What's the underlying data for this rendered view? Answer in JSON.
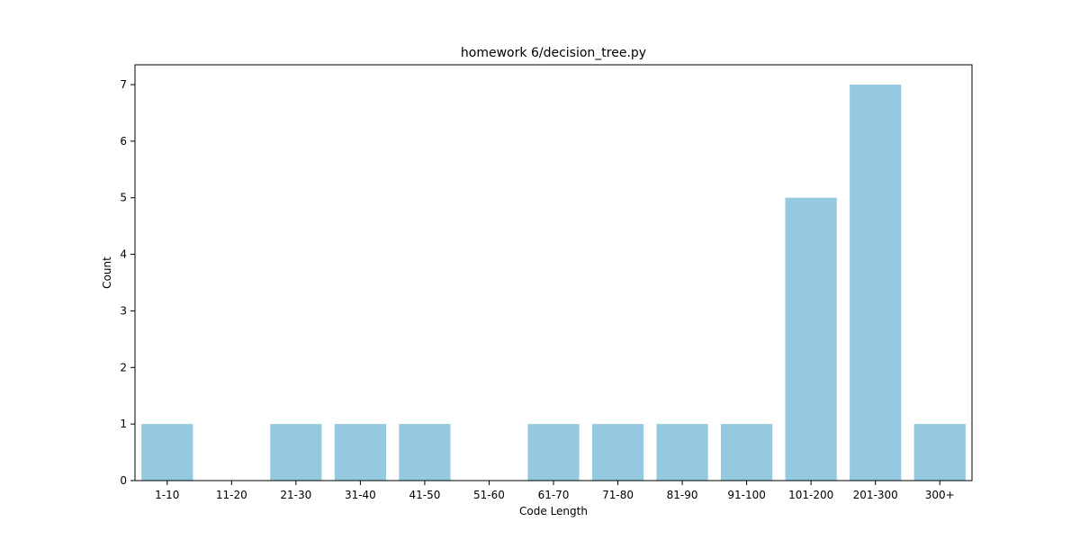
{
  "chart_data": {
    "type": "bar",
    "title": "homework 6/decision_tree.py",
    "xlabel": "Code Length",
    "ylabel": "Count",
    "categories": [
      "1-10",
      "11-20",
      "21-30",
      "31-40",
      "41-50",
      "51-60",
      "61-70",
      "71-80",
      "81-90",
      "91-100",
      "101-200",
      "201-300",
      "300+"
    ],
    "values": [
      1,
      0,
      1,
      1,
      1,
      0,
      1,
      1,
      1,
      1,
      5,
      7,
      1
    ],
    "ylim": [
      0,
      7.35
    ],
    "yticks": [
      0,
      1,
      2,
      3,
      4,
      5,
      6,
      7
    ],
    "bar_color": "#95c9df",
    "grid": false,
    "legend": "none"
  }
}
